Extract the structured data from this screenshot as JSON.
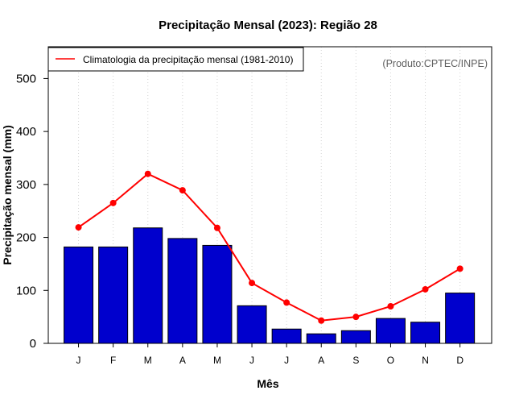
{
  "chart_data": {
    "type": "bar",
    "title": "Precipitação Mensal (2023): Região 28",
    "xlabel": "Mês",
    "ylabel": "Precipitação mensal (mm)",
    "categories": [
      "J",
      "F",
      "M",
      "A",
      "M",
      "J",
      "J",
      "A",
      "S",
      "O",
      "N",
      "D"
    ],
    "ylim": [
      0,
      560
    ],
    "yticks": [
      0,
      100,
      200,
      300,
      400,
      500
    ],
    "grid": "vertical-dotted",
    "series": [
      {
        "name": "Precipitação mensal (2023)",
        "type": "bar",
        "color": "#0000CD",
        "values": [
          182,
          182,
          218,
          198,
          185,
          71,
          27,
          18,
          24,
          47,
          40,
          95
        ]
      },
      {
        "name": "Climatologia da precipitação mensal (1981-2010)",
        "type": "line",
        "color": "#FF0000",
        "values": [
          219,
          265,
          320,
          289,
          218,
          114,
          77,
          43,
          50,
          70,
          102,
          141
        ]
      }
    ],
    "legend": {
      "position": "top-left",
      "entries": [
        "Climatologia da precipitação mensal (1981-2010)"
      ]
    },
    "credit": "(Produto:CPTEC/INPE)"
  }
}
